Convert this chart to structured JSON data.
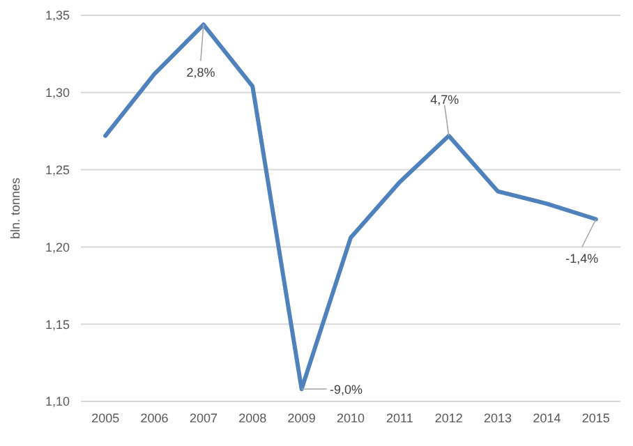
{
  "chart_data": {
    "type": "line",
    "ylabel": "bln. tonnes",
    "categories": [
      "2005",
      "2006",
      "2007",
      "2008",
      "2009",
      "2010",
      "2011",
      "2012",
      "2013",
      "2014",
      "2015"
    ],
    "series": [
      {
        "color": "#4f81bd",
        "values": [
          1.272,
          1.312,
          1.344,
          1.304,
          1.108,
          1.206,
          1.242,
          1.272,
          1.236,
          1.228,
          1.218
        ]
      }
    ],
    "ylim": [
      1.1,
      1.35
    ],
    "yticks": [
      {
        "value": 1.1,
        "label": "1,10"
      },
      {
        "value": 1.15,
        "label": "1,15"
      },
      {
        "value": 1.2,
        "label": "1,20"
      },
      {
        "value": 1.25,
        "label": "1,25"
      },
      {
        "value": 1.3,
        "label": "1,30"
      },
      {
        "value": 1.35,
        "label": "1,35"
      }
    ],
    "grid": "y",
    "marker": "none",
    "line_style": "solid",
    "annotations": [
      {
        "text": "2,8%",
        "x": "2007",
        "y": 1.344
      },
      {
        "text": "-9,0%",
        "x": "2009",
        "y": 1.108
      },
      {
        "text": "4,7%",
        "x": "2012",
        "y": 1.272
      },
      {
        "text": "-1,4%",
        "x": "2015",
        "y": 1.218
      }
    ]
  }
}
